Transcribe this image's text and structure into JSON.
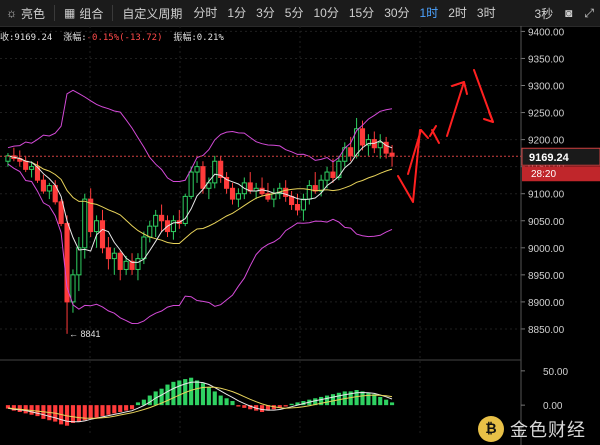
{
  "toolbar": {
    "theme_label": "亮色",
    "combo_label": "组合",
    "custom_period_label": "自定义周期",
    "timeframes": [
      "分时",
      "1分",
      "3分",
      "5分",
      "10分",
      "15分",
      "30分",
      "1时",
      "2时",
      "3时"
    ],
    "active_timeframe": "1时",
    "refresh_label": "3秒"
  },
  "info_bar": {
    "close_prefix": "收:",
    "close_value": "9169.24",
    "change_prefix": "涨幅:",
    "change_value": "-0.15%(-13.72)",
    "amplitude_prefix": "振幅:",
    "amplitude_value": "0.21%"
  },
  "price_axis": {
    "ticks": [
      "9400.00",
      "9350.00",
      "9300.00",
      "9250.00",
      "9200.00",
      "9150.00",
      "9100.00",
      "9050.00",
      "9000.00",
      "8950.00",
      "8900.00",
      "8850.00"
    ],
    "current_price": "9169.24",
    "countdown": "28:20"
  },
  "macd_axis": {
    "ticks": [
      "50.00",
      "0.00"
    ]
  },
  "annotations": {
    "low_marker": "← 8841"
  },
  "watermark": {
    "logo_glyph": "₿",
    "text": "金色财经"
  },
  "colors": {
    "up": "#2fd162",
    "down": "#ff3b3b",
    "boll": "#d44ad8",
    "ma_white": "#e8e8e8",
    "ma_yellow": "#e8d35a",
    "arrow": "#ff2020",
    "accent": "#4da3ff"
  },
  "chart_data": {
    "type": "candlestick",
    "ylim": [
      8800,
      9410
    ],
    "last_price": 9169.24,
    "low_label_value": 8841,
    "candles": [
      [
        9160,
        9175,
        9150,
        9170
      ],
      [
        9170,
        9185,
        9160,
        9165
      ],
      [
        9165,
        9180,
        9150,
        9160
      ],
      [
        9160,
        9170,
        9140,
        9145
      ],
      [
        9145,
        9160,
        9130,
        9150
      ],
      [
        9150,
        9160,
        9120,
        9125
      ],
      [
        9125,
        9135,
        9100,
        9105
      ],
      [
        9105,
        9120,
        9090,
        9115
      ],
      [
        9115,
        9125,
        9080,
        9085
      ],
      [
        9085,
        9090,
        9040,
        9045
      ],
      [
        9045,
        9060,
        8841,
        8900
      ],
      [
        8900,
        8960,
        8880,
        8950
      ],
      [
        8950,
        9020,
        8920,
        9000
      ],
      [
        9000,
        9100,
        8980,
        9090
      ],
      [
        9090,
        9110,
        9020,
        9030
      ],
      [
        9030,
        9060,
        9000,
        9050
      ],
      [
        9050,
        9070,
        8990,
        9000
      ],
      [
        9000,
        9020,
        8960,
        8980
      ],
      [
        8980,
        9000,
        8950,
        8990
      ],
      [
        8990,
        8995,
        8940,
        8960
      ],
      [
        8960,
        8985,
        8950,
        8975
      ],
      [
        8975,
        8990,
        8950,
        8960
      ],
      [
        8960,
        8990,
        8940,
        8980
      ],
      [
        8980,
        9030,
        8970,
        9020
      ],
      [
        9020,
        9050,
        9010,
        9040
      ],
      [
        9040,
        9070,
        9020,
        9060
      ],
      [
        9060,
        9080,
        9030,
        9050
      ],
      [
        9050,
        9060,
        9020,
        9030
      ],
      [
        9030,
        9060,
        9015,
        9050
      ],
      [
        9050,
        9070,
        9035,
        9045
      ],
      [
        9045,
        9100,
        9040,
        9095
      ],
      [
        9095,
        9150,
        9090,
        9140
      ],
      [
        9140,
        9160,
        9120,
        9150
      ],
      [
        9150,
        9160,
        9100,
        9110
      ],
      [
        9110,
        9130,
        9090,
        9120
      ],
      [
        9120,
        9170,
        9110,
        9160
      ],
      [
        9160,
        9170,
        9120,
        9130
      ],
      [
        9130,
        9140,
        9100,
        9110
      ],
      [
        9110,
        9120,
        9080,
        9090
      ],
      [
        9090,
        9110,
        9075,
        9100
      ],
      [
        9100,
        9130,
        9090,
        9120
      ],
      [
        9120,
        9140,
        9100,
        9105
      ],
      [
        9105,
        9120,
        9090,
        9110
      ],
      [
        9110,
        9130,
        9095,
        9100
      ],
      [
        9100,
        9120,
        9085,
        9090
      ],
      [
        9090,
        9110,
        9075,
        9100
      ],
      [
        9100,
        9120,
        9090,
        9110
      ],
      [
        9110,
        9125,
        9085,
        9095
      ],
      [
        9095,
        9105,
        9070,
        9080
      ],
      [
        9080,
        9100,
        9060,
        9070
      ],
      [
        9070,
        9100,
        9050,
        9090
      ],
      [
        9090,
        9125,
        9080,
        9115
      ],
      [
        9115,
        9140,
        9100,
        9105
      ],
      [
        9105,
        9135,
        9095,
        9125
      ],
      [
        9125,
        9150,
        9110,
        9140
      ],
      [
        9140,
        9165,
        9120,
        9130
      ],
      [
        9130,
        9170,
        9125,
        9160
      ],
      [
        9160,
        9195,
        9150,
        9185
      ],
      [
        9185,
        9205,
        9160,
        9170
      ],
      [
        9170,
        9240,
        9165,
        9220
      ],
      [
        9220,
        9235,
        9180,
        9190
      ],
      [
        9190,
        9210,
        9170,
        9200
      ],
      [
        9200,
        9215,
        9175,
        9185
      ],
      [
        9185,
        9210,
        9165,
        9195
      ],
      [
        9195,
        9205,
        9165,
        9175
      ],
      [
        9175,
        9190,
        9150,
        9169.24
      ]
    ],
    "macd_hist": [
      -5,
      -8,
      -10,
      -12,
      -14,
      -16,
      -20,
      -22,
      -24,
      -28,
      -30,
      -26,
      -24,
      -22,
      -20,
      -18,
      -16,
      -14,
      -12,
      -10,
      -8,
      -6,
      4,
      8,
      14,
      20,
      24,
      30,
      34,
      36,
      38,
      40,
      36,
      32,
      26,
      20,
      14,
      10,
      6,
      -2,
      -4,
      -6,
      -8,
      -10,
      -8,
      -6,
      -4,
      -2,
      2,
      4,
      6,
      8,
      10,
      12,
      14,
      16,
      18,
      20,
      20,
      22,
      20,
      18,
      16,
      12,
      8,
      4
    ],
    "macd_ylim": [
      -45,
      60
    ]
  }
}
